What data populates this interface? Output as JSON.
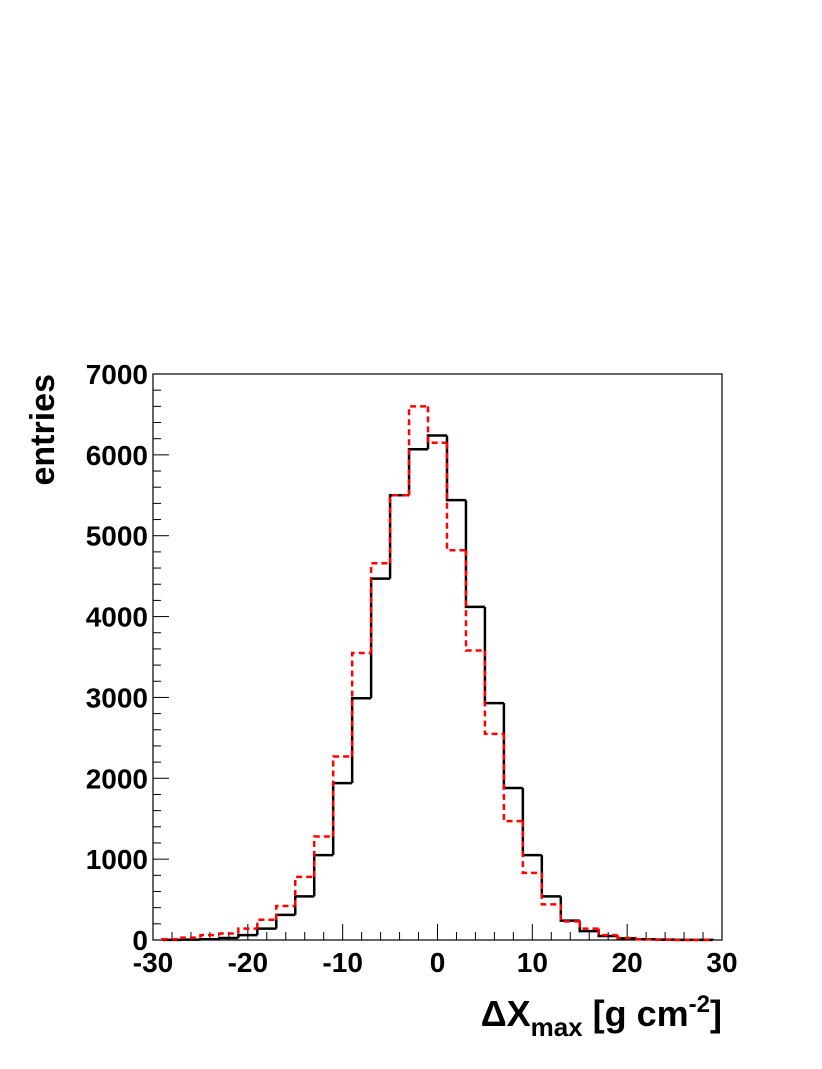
{
  "chart_data": {
    "type": "histogram",
    "x_label": [
      "ΔX",
      "max",
      " [g cm",
      "-2",
      "]"
    ],
    "y_label": "entries",
    "bins": [
      -29,
      -27,
      -25,
      -23,
      -21,
      -19,
      -17,
      -15,
      -13,
      -11,
      -9,
      -7,
      -5,
      -3,
      -1,
      1,
      3,
      5,
      7,
      9,
      11,
      13,
      15,
      17,
      19,
      21,
      23,
      25,
      27,
      29
    ],
    "series": [
      {
        "color": "#000000",
        "style": "solid",
        "values": [
          2,
          5,
          10,
          25,
          60,
          140,
          310,
          540,
          1050,
          1940,
          2990,
          4470,
          5500,
          6070,
          6240,
          5440,
          4120,
          2930,
          1880,
          1050,
          540,
          240,
          110,
          50,
          20,
          10,
          5,
          2,
          1
        ]
      },
      {
        "color": "#ff0000",
        "style": "dashed",
        "values": [
          10,
          30,
          60,
          80,
          140,
          250,
          420,
          780,
          1280,
          2270,
          3550,
          4660,
          5500,
          6600,
          6150,
          4820,
          3580,
          2550,
          1470,
          830,
          440,
          230,
          140,
          60,
          25,
          10,
          5,
          2,
          1
        ]
      }
    ],
    "xlim": [
      -30,
      30
    ],
    "xticks": [
      -30,
      -20,
      -10,
      0,
      10,
      20,
      30
    ],
    "ylim": [
      0,
      7000
    ],
    "yticks": [
      0,
      1000,
      2000,
      3000,
      4000,
      5000,
      6000,
      7000
    ]
  }
}
